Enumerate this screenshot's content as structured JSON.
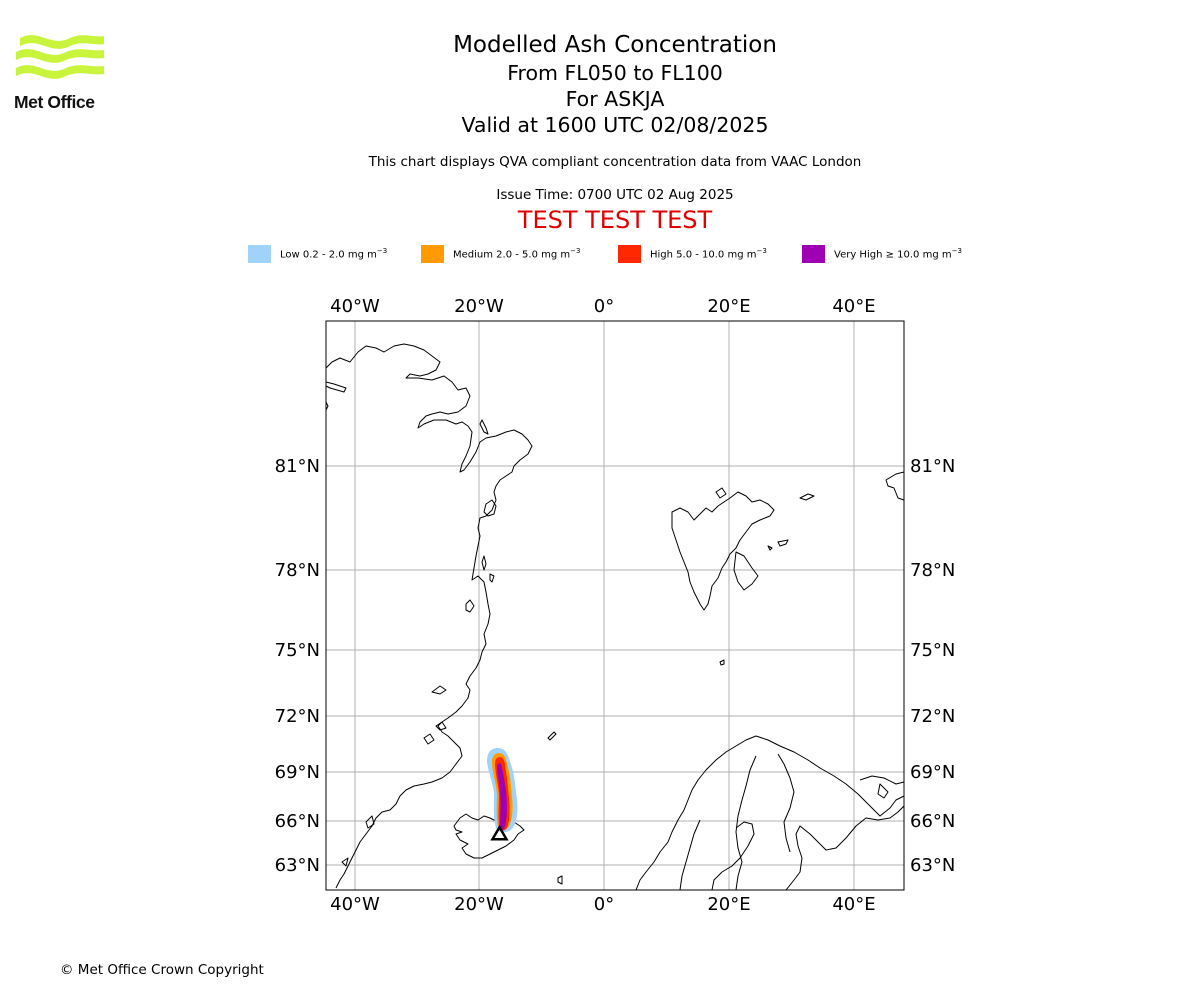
{
  "logo": {
    "text": "Met Office",
    "color": "#c8f53c"
  },
  "title": "Modelled Ash Concentration",
  "levels": "From FL050 to FL100",
  "volcano": "For ASKJA",
  "valid": "Valid at 1600 UTC 02/08/2025",
  "note": "This chart displays QVA compliant concentration data from VAAC London",
  "issue_time": "Issue Time: 0700 UTC 02 Aug 2025",
  "test_banner": "TEST TEST TEST",
  "legend": [
    {
      "label": "Low 0.2 - 2.0 mg m",
      "color": "#a0d2fa"
    },
    {
      "label": "Medium 2.0 - 5.0 mg m",
      "color": "#ff9a00"
    },
    {
      "label": "High 5.0 - 10.0 mg m",
      "color": "#ff2800"
    },
    {
      "label": "Very High ≥ 10.0 mg m",
      "color": "#a000b4"
    }
  ],
  "legend_unit_exponent": "−3",
  "map": {
    "lon_ticks": [
      "40°W",
      "20°W",
      "0°",
      "20°E",
      "40°E"
    ],
    "lat_ticks": [
      "81°N",
      "78°N",
      "75°N",
      "72°N",
      "69°N",
      "66°N",
      "63°N"
    ],
    "volcano_marker": {
      "lon": -16.75,
      "lat": 65.03
    }
  },
  "copyright": "© Met Office Crown Copyright"
}
